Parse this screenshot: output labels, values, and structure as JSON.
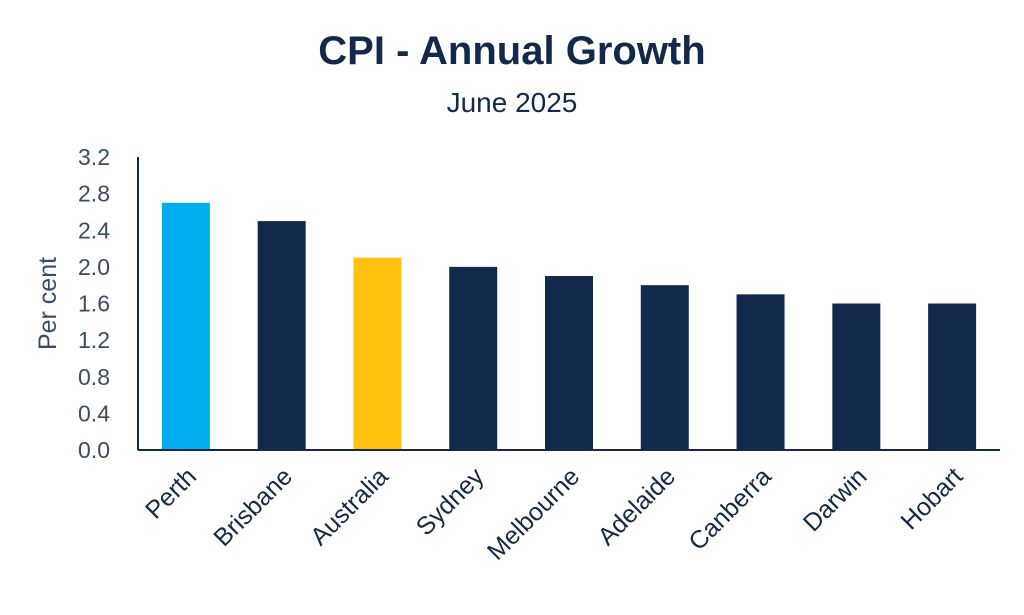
{
  "chart_data": {
    "type": "bar",
    "title": "CPI - Annual Growth",
    "subtitle": "June 2025",
    "ylabel": "Per cent",
    "xlabel": "",
    "ylim": [
      0,
      3.2
    ],
    "yticks": [
      "0.0",
      "0.4",
      "0.8",
      "1.2",
      "1.6",
      "2.0",
      "2.4",
      "2.8",
      "3.2"
    ],
    "categories": [
      "Perth",
      "Brisbane",
      "Australia",
      "Sydney",
      "Melbourne",
      "Adelaide",
      "Canberra",
      "Darwin",
      "Hobart"
    ],
    "values": [
      2.7,
      2.5,
      2.1,
      2.0,
      1.9,
      1.8,
      1.7,
      1.6,
      1.6
    ],
    "bar_colors": [
      "#00aeef",
      "#13294b",
      "#ffc20e",
      "#13294b",
      "#13294b",
      "#13294b",
      "#13294b",
      "#13294b",
      "#13294b"
    ],
    "grid": false,
    "legend": "none"
  },
  "colors": {
    "text": "#13294b",
    "axis_text": "#3c4a63",
    "axis_line": "#13294b"
  }
}
